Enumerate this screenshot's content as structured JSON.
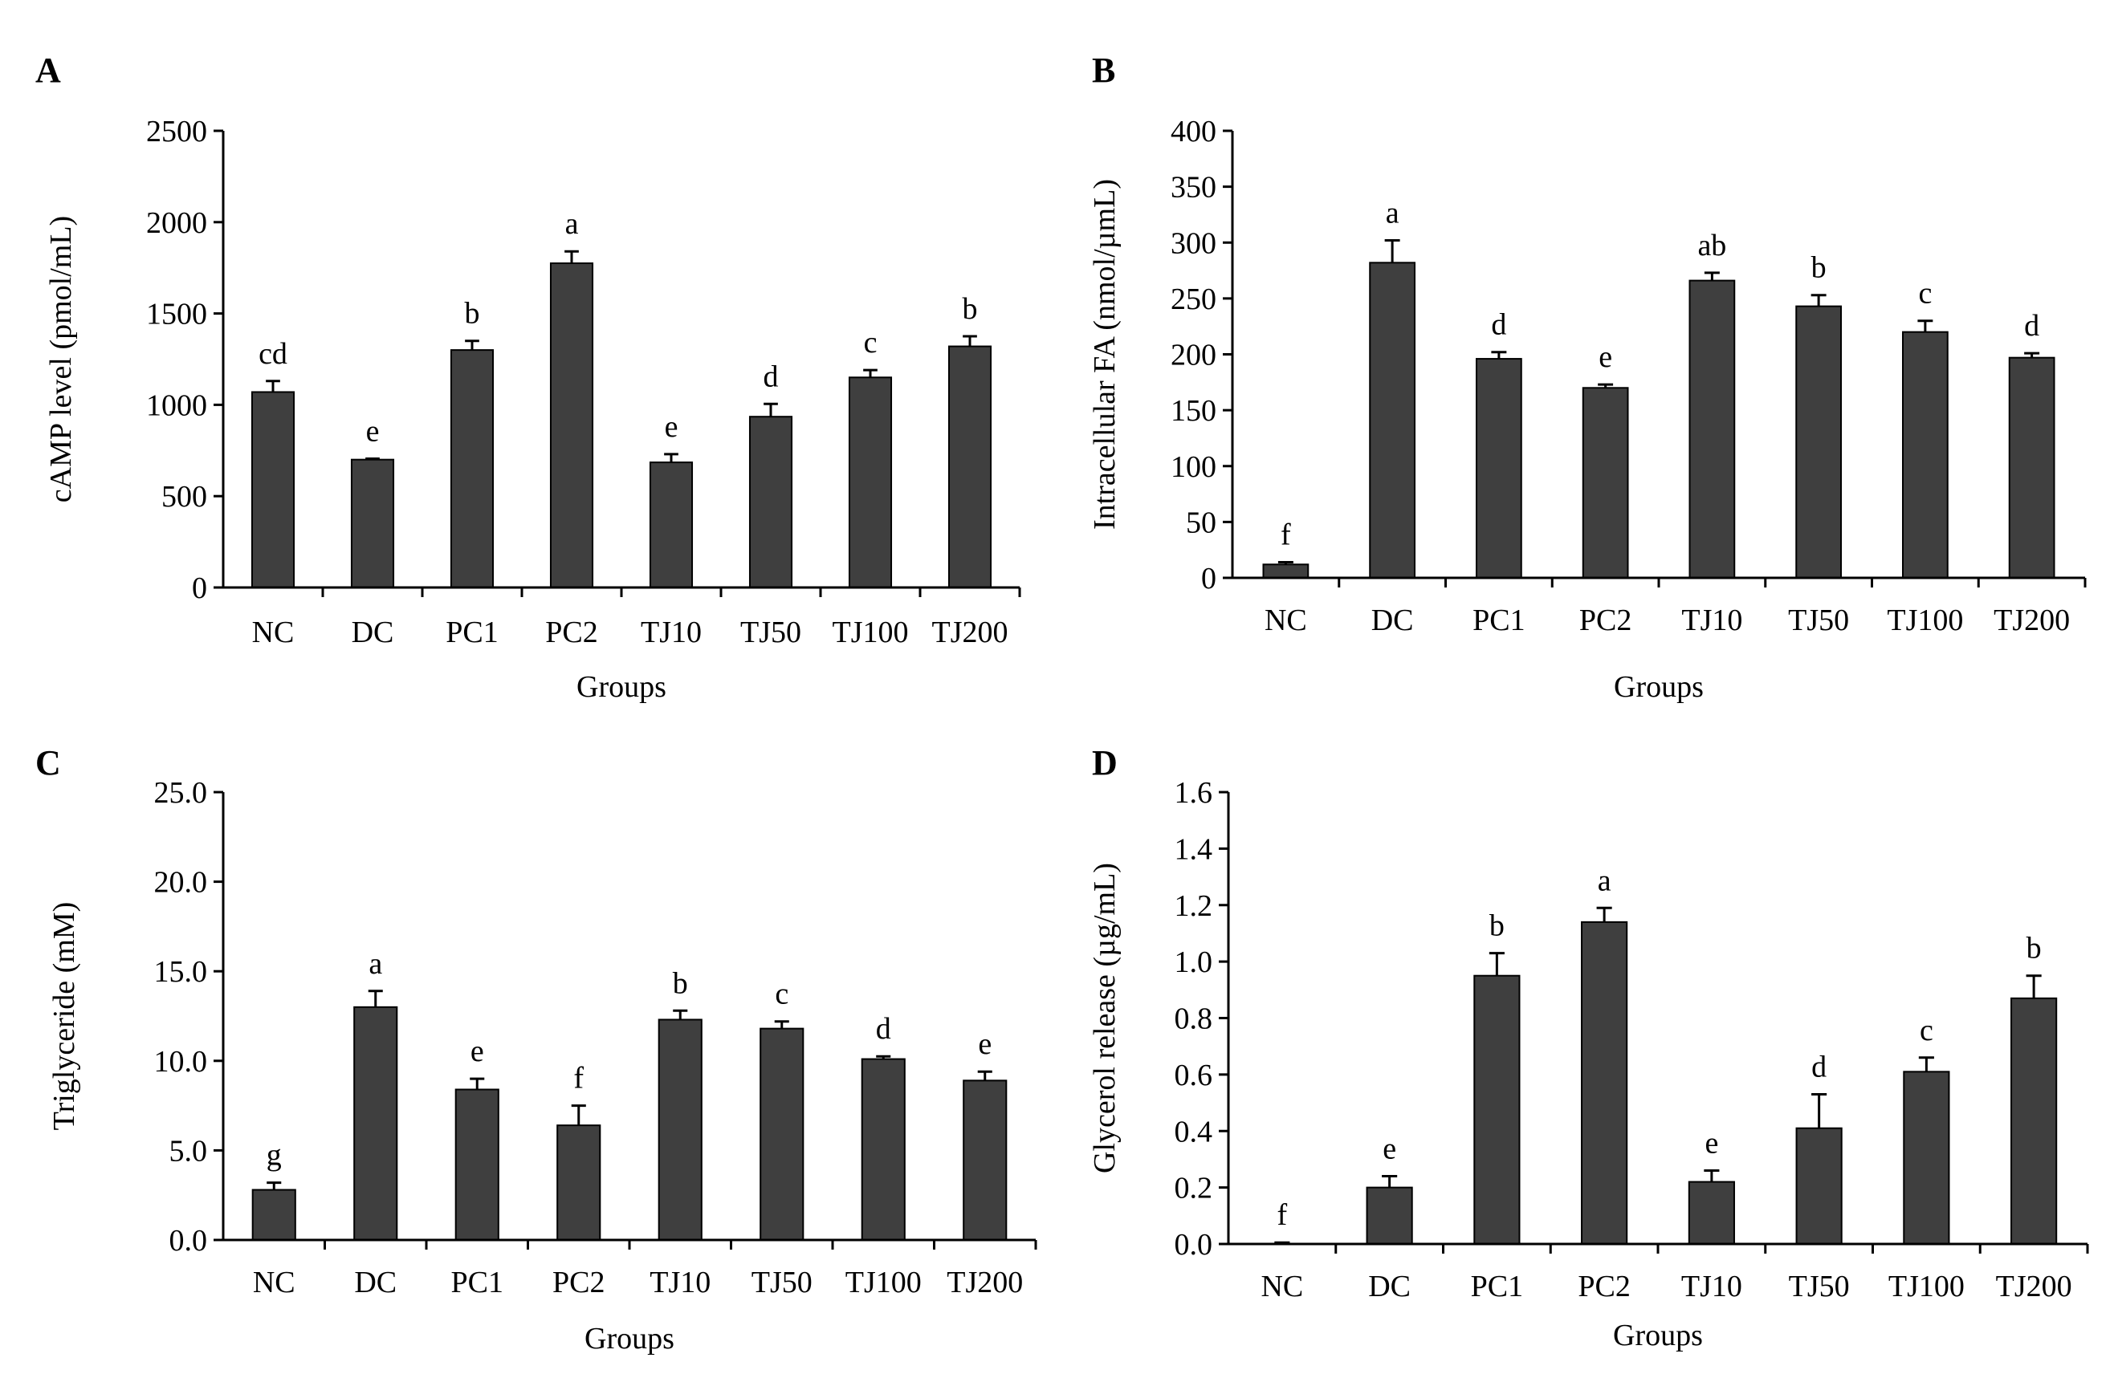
{
  "chart_data": [
    {
      "panel": "A",
      "type": "bar",
      "categories": [
        "NC",
        "DC",
        "PC1",
        "PC2",
        "TJ10",
        "TJ50",
        "TJ100",
        "TJ200"
      ],
      "values": [
        1070,
        700,
        1300,
        1775,
        685,
        935,
        1150,
        1320
      ],
      "errors": [
        60,
        5,
        50,
        65,
        45,
        70,
        40,
        55
      ],
      "labels": [
        "cd",
        "e",
        "b",
        "a",
        "e",
        "d",
        "c",
        "b"
      ],
      "title": "",
      "xlabel": "Groups",
      "ylabel": "cAMP level (pmol/mL)",
      "ylim": [
        0,
        2500
      ],
      "yticks": [
        "0",
        "500",
        "1000",
        "1500",
        "2000",
        "2500"
      ]
    },
    {
      "panel": "B",
      "type": "bar",
      "categories": [
        "NC",
        "DC",
        "PC1",
        "PC2",
        "TJ10",
        "TJ50",
        "TJ100",
        "TJ200"
      ],
      "values": [
        12,
        282,
        196,
        170,
        266,
        243,
        220,
        197
      ],
      "errors": [
        2,
        20,
        6,
        3,
        7,
        10,
        10,
        4
      ],
      "labels": [
        "f",
        "a",
        "d",
        "e",
        "ab",
        "b",
        "c",
        "d"
      ],
      "title": "",
      "xlabel": "Groups",
      "ylabel": "Intracellular FA (nmol/µmL)",
      "ylim": [
        0,
        400
      ],
      "yticks": [
        "0",
        "50",
        "100",
        "150",
        "200",
        "250",
        "300",
        "350",
        "400"
      ]
    },
    {
      "panel": "C",
      "type": "bar",
      "categories": [
        "NC",
        "DC",
        "PC1",
        "PC2",
        "TJ10",
        "TJ50",
        "TJ100",
        "TJ200"
      ],
      "values": [
        2.8,
        13.0,
        8.4,
        6.4,
        12.3,
        11.8,
        10.1,
        8.9
      ],
      "errors": [
        0.4,
        0.9,
        0.6,
        1.1,
        0.5,
        0.4,
        0.15,
        0.5
      ],
      "labels": [
        "g",
        "a",
        "e",
        "f",
        "b",
        "c",
        "d",
        "e"
      ],
      "title": "",
      "xlabel": "Groups",
      "ylabel": "Triglyceride (mM)",
      "ylim": [
        0,
        25
      ],
      "yticks": [
        "0.0",
        "5.0",
        "10.0",
        "15.0",
        "20.0",
        "25.0"
      ]
    },
    {
      "panel": "D",
      "type": "bar",
      "categories": [
        "NC",
        "DC",
        "PC1",
        "PC2",
        "TJ10",
        "TJ50",
        "TJ100",
        "TJ200"
      ],
      "values": [
        0.0,
        0.2,
        0.95,
        1.14,
        0.22,
        0.41,
        0.61,
        0.87
      ],
      "errors": [
        0.005,
        0.04,
        0.08,
        0.05,
        0.04,
        0.12,
        0.05,
        0.08
      ],
      "labels": [
        "f",
        "e",
        "b",
        "a",
        "e",
        "d",
        "c",
        "b"
      ],
      "title": "",
      "xlabel": "Groups",
      "ylabel": "Glycerol release (µg/mL)",
      "ylim": [
        0,
        1.6
      ],
      "yticks": [
        "0.0",
        "0.2",
        "0.4",
        "0.6",
        "0.8",
        "1.0",
        "1.2",
        "1.4",
        "1.6"
      ]
    }
  ]
}
